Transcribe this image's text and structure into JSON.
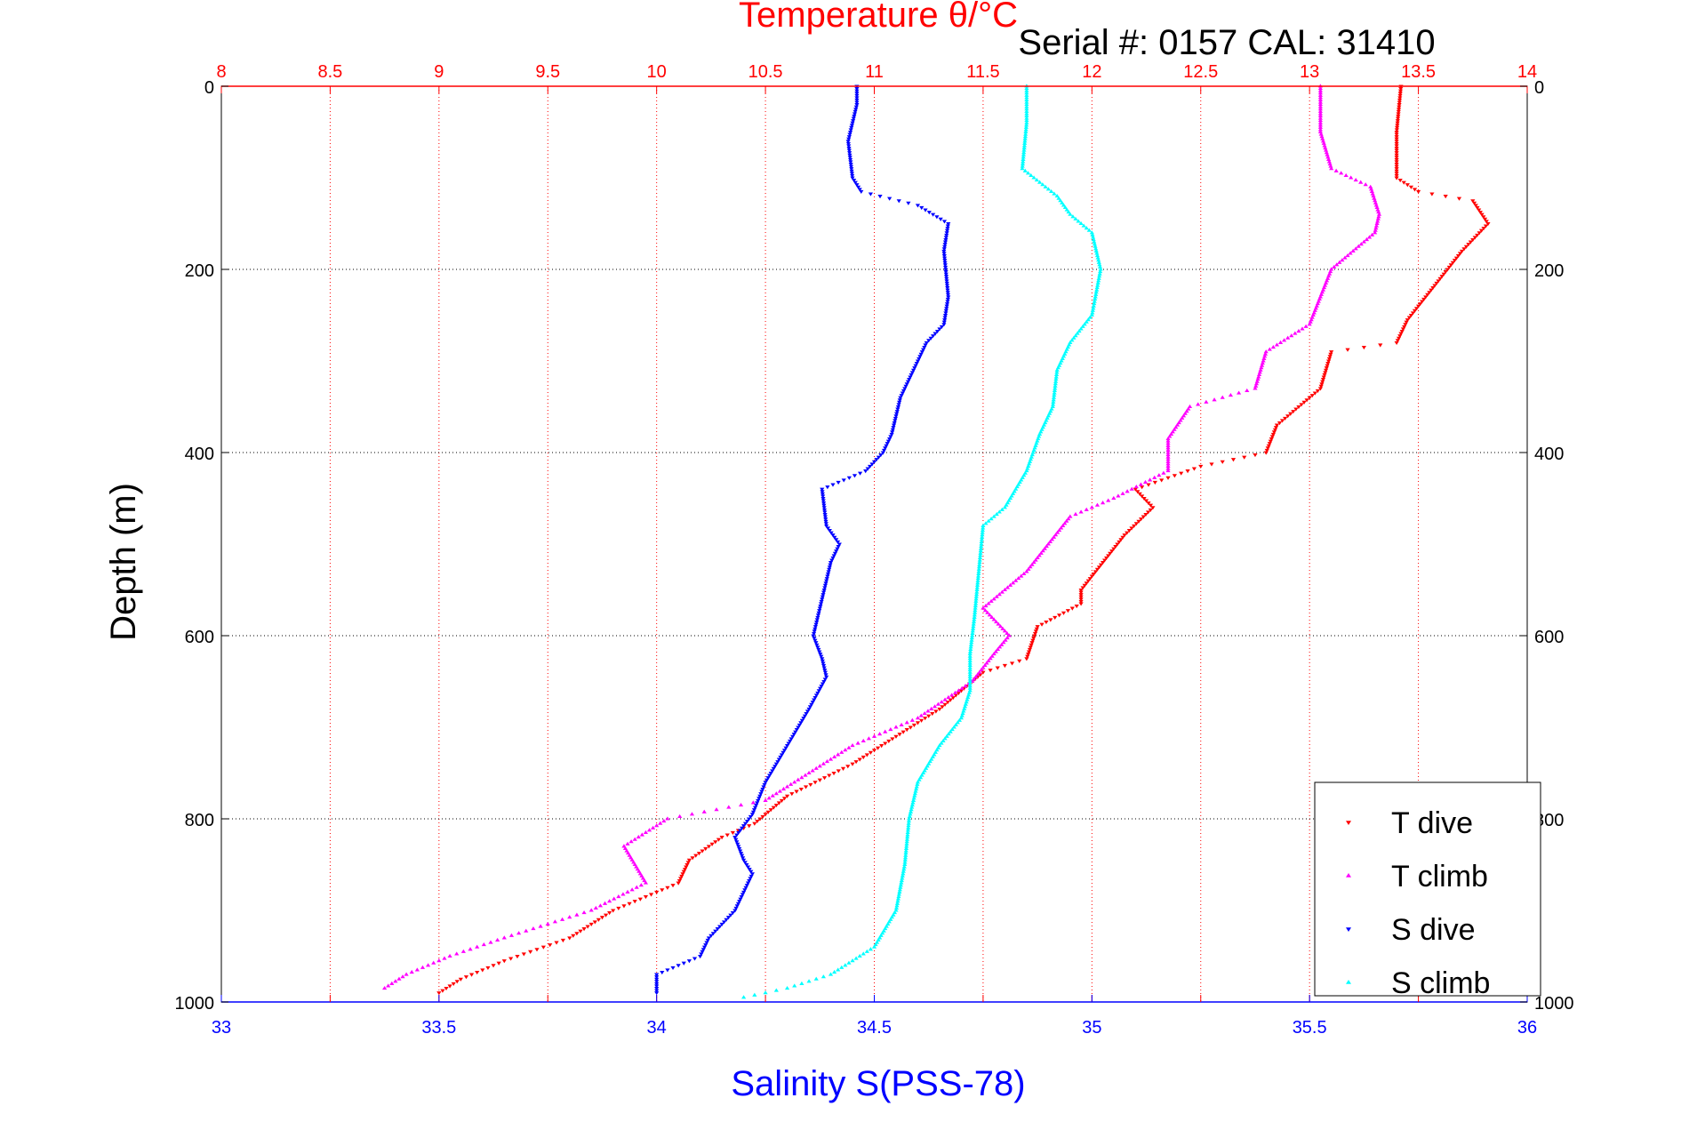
{
  "chart_data": {
    "type": "scatter",
    "title": "Temperature θ/°C",
    "subtitle": "Serial #: 0157  CAL: 31410",
    "xlabel": "Salinity S(PSS-78)",
    "ylabel": "Depth (m)",
    "x_bottom": {
      "label": "Salinity S(PSS-78)",
      "lim": [
        33,
        36
      ],
      "ticks": [
        "33",
        "33.5",
        "34",
        "34.5",
        "35",
        "35.5",
        "36"
      ],
      "color": "#0000ff"
    },
    "x_top": {
      "label": "Temperature θ/°C",
      "lim": [
        8,
        14
      ],
      "ticks": [
        "8",
        "8.5",
        "9",
        "9.5",
        "10",
        "10.5",
        "11",
        "11.5",
        "12",
        "12.5",
        "13",
        "13.5",
        "14"
      ],
      "color": "#ff0000"
    },
    "y": {
      "label": "Depth (m)",
      "lim": [
        0,
        1000
      ],
      "reversed": true,
      "ticks": [
        "0",
        "200",
        "400",
        "600",
        "800",
        "1000"
      ]
    },
    "grid": true,
    "legend": {
      "placement": "bottom-right",
      "entries": [
        "T dive",
        "T climb",
        "S dive",
        "S climb"
      ]
    },
    "series": [
      {
        "name": "T dive",
        "axis": "temperature",
        "color": "#ff0000",
        "marker": "triangle-down",
        "points": [
          [
            13.42,
            0
          ],
          [
            13.4,
            50
          ],
          [
            13.4,
            100
          ],
          [
            13.5,
            115
          ],
          [
            13.75,
            125
          ],
          [
            13.82,
            150
          ],
          [
            13.7,
            180
          ],
          [
            13.6,
            210
          ],
          [
            13.45,
            255
          ],
          [
            13.4,
            280
          ],
          [
            13.1,
            290
          ],
          [
            13.05,
            330
          ],
          [
            12.85,
            370
          ],
          [
            12.8,
            400
          ],
          [
            12.5,
            415
          ],
          [
            12.2,
            440
          ],
          [
            12.28,
            460
          ],
          [
            12.15,
            490
          ],
          [
            12.05,
            520
          ],
          [
            11.95,
            550
          ],
          [
            11.95,
            565
          ],
          [
            11.75,
            590
          ],
          [
            11.7,
            625
          ],
          [
            11.5,
            640
          ],
          [
            11.3,
            680
          ],
          [
            11.1,
            710
          ],
          [
            10.9,
            740
          ],
          [
            10.6,
            775
          ],
          [
            10.45,
            805
          ],
          [
            10.3,
            820
          ],
          [
            10.15,
            845
          ],
          [
            10.1,
            870
          ],
          [
            9.8,
            900
          ],
          [
            9.6,
            930
          ],
          [
            9.3,
            955
          ],
          [
            9.1,
            975
          ],
          [
            9.0,
            990
          ]
        ]
      },
      {
        "name": "T climb",
        "axis": "temperature",
        "color": "#ff00ff",
        "marker": "triangle-up",
        "points": [
          [
            13.05,
            0
          ],
          [
            13.05,
            50
          ],
          [
            13.1,
            90
          ],
          [
            13.28,
            110
          ],
          [
            13.32,
            140
          ],
          [
            13.3,
            160
          ],
          [
            13.2,
            180
          ],
          [
            13.1,
            200
          ],
          [
            13.0,
            260
          ],
          [
            12.8,
            290
          ],
          [
            12.75,
            330
          ],
          [
            12.45,
            350
          ],
          [
            12.35,
            385
          ],
          [
            12.35,
            420
          ],
          [
            12.1,
            450
          ],
          [
            11.9,
            470
          ],
          [
            11.8,
            500
          ],
          [
            11.7,
            530
          ],
          [
            11.5,
            570
          ],
          [
            11.62,
            600
          ],
          [
            11.55,
            620
          ],
          [
            11.45,
            650
          ],
          [
            11.2,
            690
          ],
          [
            10.9,
            720
          ],
          [
            10.7,
            750
          ],
          [
            10.5,
            780
          ],
          [
            10.05,
            800
          ],
          [
            9.85,
            830
          ],
          [
            9.95,
            870
          ],
          [
            9.7,
            900
          ],
          [
            9.3,
            930
          ],
          [
            9.05,
            950
          ],
          [
            8.85,
            970
          ],
          [
            8.75,
            985
          ]
        ]
      },
      {
        "name": "S dive",
        "axis": "salinity",
        "color": "#0000ff",
        "marker": "triangle-down",
        "points": [
          [
            34.46,
            0
          ],
          [
            34.46,
            20
          ],
          [
            34.44,
            60
          ],
          [
            34.45,
            100
          ],
          [
            34.47,
            115
          ],
          [
            34.6,
            130
          ],
          [
            34.67,
            150
          ],
          [
            34.66,
            180
          ],
          [
            34.67,
            230
          ],
          [
            34.66,
            260
          ],
          [
            34.62,
            280
          ],
          [
            34.6,
            300
          ],
          [
            34.56,
            340
          ],
          [
            34.54,
            380
          ],
          [
            34.52,
            400
          ],
          [
            34.48,
            420
          ],
          [
            34.38,
            440
          ],
          [
            34.39,
            480
          ],
          [
            34.42,
            500
          ],
          [
            34.4,
            520
          ],
          [
            34.38,
            560
          ],
          [
            34.36,
            600
          ],
          [
            34.38,
            625
          ],
          [
            34.39,
            645
          ],
          [
            34.35,
            680
          ],
          [
            34.3,
            720
          ],
          [
            34.25,
            760
          ],
          [
            34.22,
            795
          ],
          [
            34.18,
            820
          ],
          [
            34.2,
            845
          ],
          [
            34.22,
            860
          ],
          [
            34.2,
            880
          ],
          [
            34.18,
            900
          ],
          [
            34.12,
            930
          ],
          [
            34.1,
            950
          ],
          [
            34.0,
            970
          ],
          [
            34.0,
            990
          ]
        ]
      },
      {
        "name": "S climb",
        "axis": "salinity",
        "color": "#00ffff",
        "marker": "triangle-up",
        "points": [
          [
            34.85,
            0
          ],
          [
            34.85,
            40
          ],
          [
            34.84,
            90
          ],
          [
            34.92,
            120
          ],
          [
            34.95,
            140
          ],
          [
            35.0,
            160
          ],
          [
            35.02,
            200
          ],
          [
            35.0,
            250
          ],
          [
            34.95,
            280
          ],
          [
            34.92,
            310
          ],
          [
            34.91,
            350
          ],
          [
            34.88,
            380
          ],
          [
            34.85,
            420
          ],
          [
            34.8,
            460
          ],
          [
            34.75,
            480
          ],
          [
            34.74,
            530
          ],
          [
            34.73,
            580
          ],
          [
            34.72,
            620
          ],
          [
            34.72,
            660
          ],
          [
            34.7,
            690
          ],
          [
            34.65,
            720
          ],
          [
            34.6,
            760
          ],
          [
            34.58,
            800
          ],
          [
            34.57,
            850
          ],
          [
            34.55,
            900
          ],
          [
            34.5,
            940
          ],
          [
            34.4,
            970
          ],
          [
            34.3,
            985
          ],
          [
            34.2,
            995
          ]
        ]
      }
    ]
  }
}
